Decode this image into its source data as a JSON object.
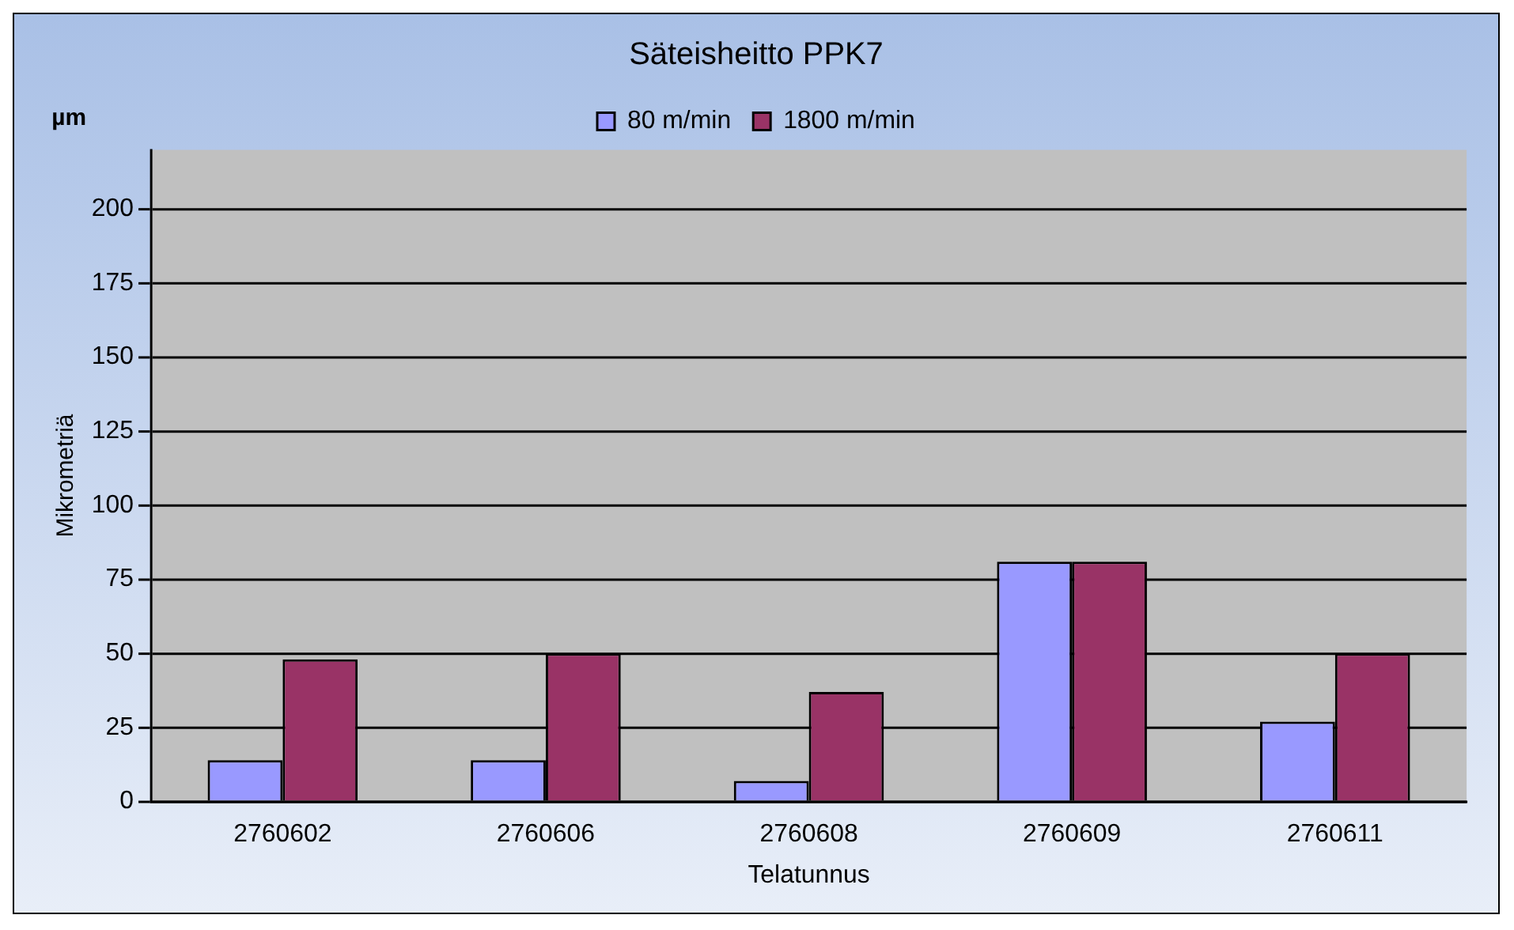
{
  "chart_data": {
    "type": "bar",
    "title": "Säteisheitto PPK7",
    "xlabel": "Telatunnus",
    "ylabel": "Mikrometriä",
    "annotations": [
      "µm"
    ],
    "categories": [
      "2760602",
      "2760606",
      "2760608",
      "2760609",
      "2760611"
    ],
    "series": [
      {
        "name": "80 m/min",
        "color": "#9999ff",
        "values": [
          14,
          14,
          7,
          81,
          27
        ]
      },
      {
        "name": "1800 m/min",
        "color": "#993366",
        "values": [
          48,
          50,
          37,
          81,
          50
        ]
      }
    ],
    "ylim": [
      0,
      220
    ],
    "yticks": [
      0,
      25,
      50,
      75,
      100,
      125,
      150,
      175,
      200
    ],
    "grid": "y",
    "legend": "top"
  }
}
